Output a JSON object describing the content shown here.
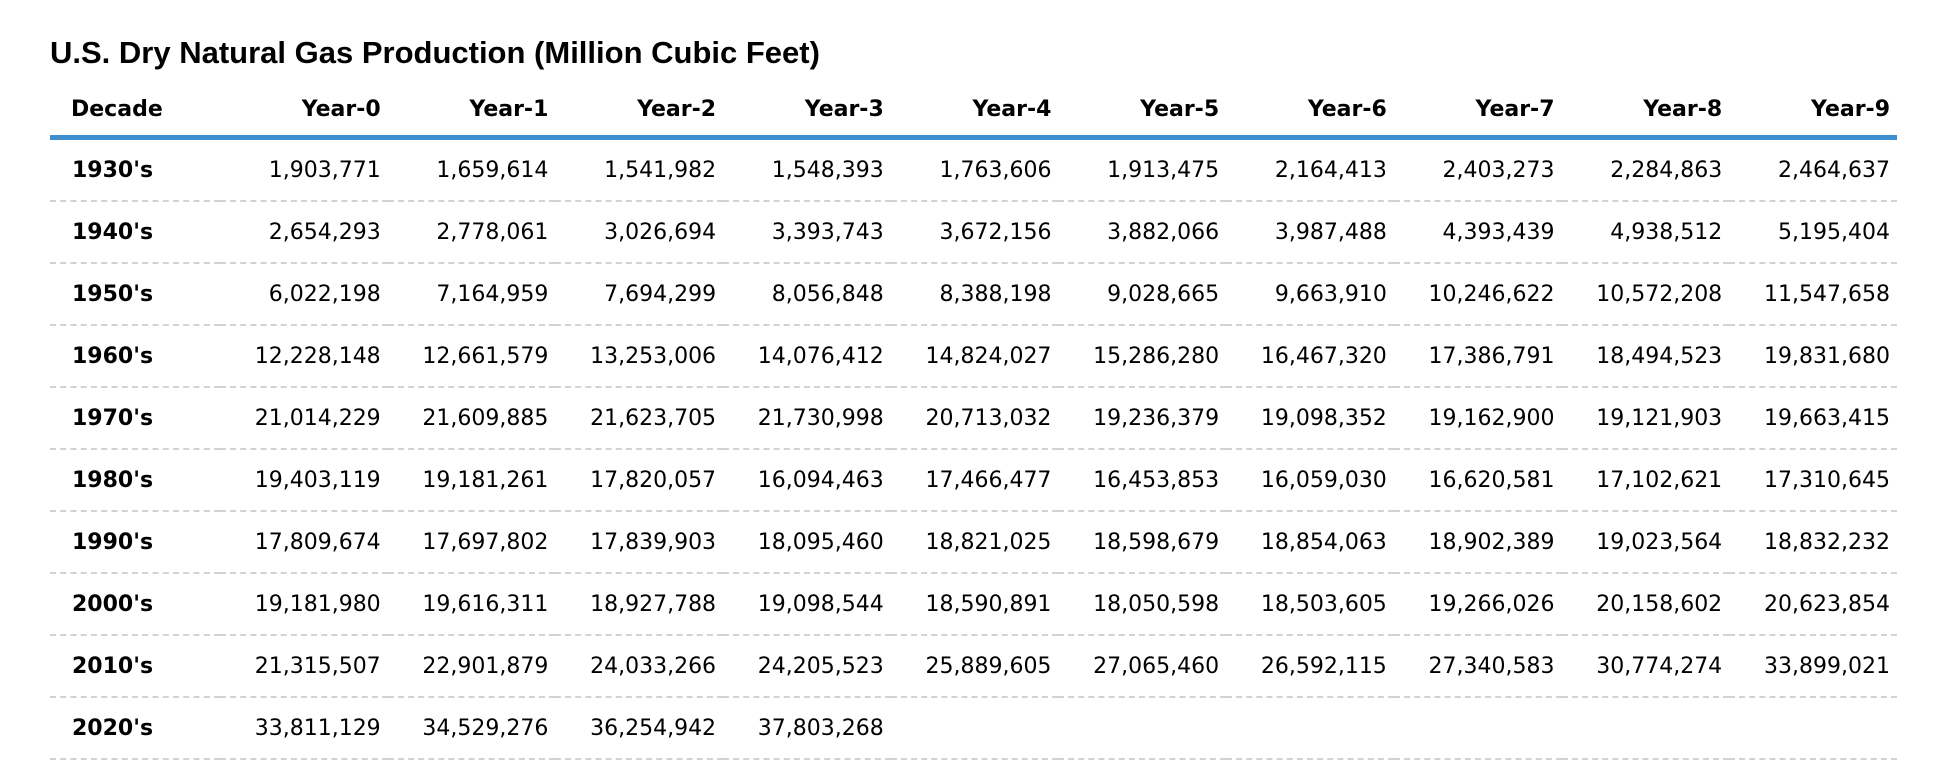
{
  "chart_data": {
    "type": "table",
    "title": "U.S. Dry Natural Gas Production (Million Cubic Feet)",
    "columns": [
      "Decade",
      "Year-0",
      "Year-1",
      "Year-2",
      "Year-3",
      "Year-4",
      "Year-5",
      "Year-6",
      "Year-7",
      "Year-8",
      "Year-9"
    ],
    "rows": [
      [
        "1930's",
        "1,903,771",
        "1,659,614",
        "1,541,982",
        "1,548,393",
        "1,763,606",
        "1,913,475",
        "2,164,413",
        "2,403,273",
        "2,284,863",
        "2,464,637"
      ],
      [
        "1940's",
        "2,654,293",
        "2,778,061",
        "3,026,694",
        "3,393,743",
        "3,672,156",
        "3,882,066",
        "3,987,488",
        "4,393,439",
        "4,938,512",
        "5,195,404"
      ],
      [
        "1950's",
        "6,022,198",
        "7,164,959",
        "7,694,299",
        "8,056,848",
        "8,388,198",
        "9,028,665",
        "9,663,910",
        "10,246,622",
        "10,572,208",
        "11,547,658"
      ],
      [
        "1960's",
        "12,228,148",
        "12,661,579",
        "13,253,006",
        "14,076,412",
        "14,824,027",
        "15,286,280",
        "16,467,320",
        "17,386,791",
        "18,494,523",
        "19,831,680"
      ],
      [
        "1970's",
        "21,014,229",
        "21,609,885",
        "21,623,705",
        "21,730,998",
        "20,713,032",
        "19,236,379",
        "19,098,352",
        "19,162,900",
        "19,121,903",
        "19,663,415"
      ],
      [
        "1980's",
        "19,403,119",
        "19,181,261",
        "17,820,057",
        "16,094,463",
        "17,466,477",
        "16,453,853",
        "16,059,030",
        "16,620,581",
        "17,102,621",
        "17,310,645"
      ],
      [
        "1990's",
        "17,809,674",
        "17,697,802",
        "17,839,903",
        "18,095,460",
        "18,821,025",
        "18,598,679",
        "18,854,063",
        "18,902,389",
        "19,023,564",
        "18,832,232"
      ],
      [
        "2000's",
        "19,181,980",
        "19,616,311",
        "18,927,788",
        "19,098,544",
        "18,590,891",
        "18,050,598",
        "18,503,605",
        "19,266,026",
        "20,158,602",
        "20,623,854"
      ],
      [
        "2010's",
        "21,315,507",
        "22,901,879",
        "24,033,266",
        "24,205,523",
        "25,889,605",
        "27,065,460",
        "26,592,115",
        "27,340,583",
        "30,774,274",
        "33,899,021"
      ],
      [
        "2020's",
        "33,811,129",
        "34,529,276",
        "36,254,942",
        "37,803,268",
        "",
        "",
        "",
        "",
        "",
        ""
      ]
    ],
    "colors": {
      "header_rule": "#3d8fd0",
      "row_divider": "#d2d2d2"
    }
  }
}
